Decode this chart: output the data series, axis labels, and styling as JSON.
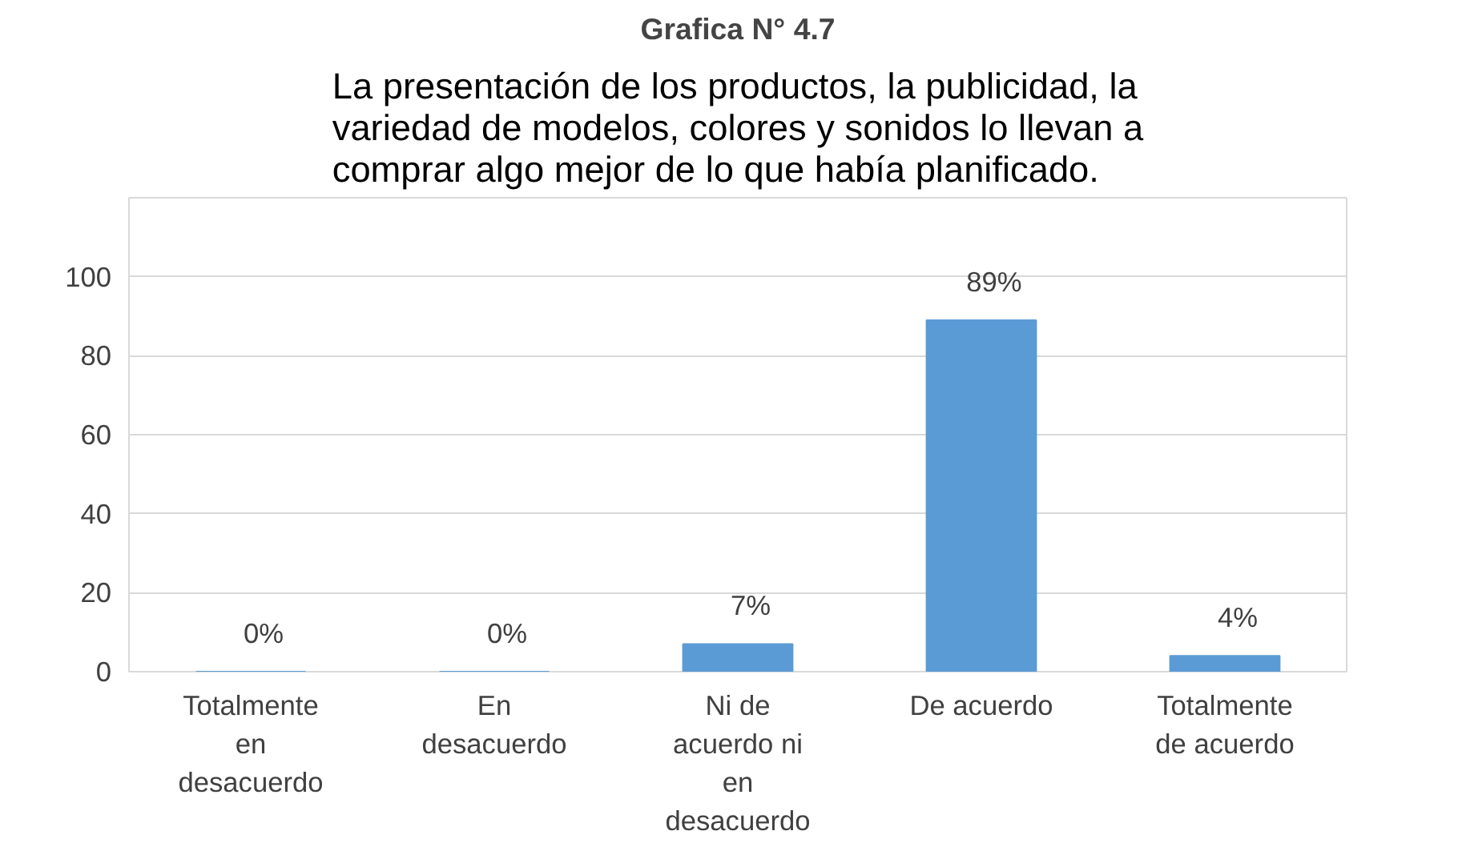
{
  "chart_data": {
    "type": "bar",
    "title": "La presentación de los productos, la publicidad, la variedad de modelos, colores y sonidos lo llevan a comprar algo mejor de lo que había planificado.",
    "annotations": [
      "Grafica N° 4.7"
    ],
    "categories": [
      "Totalmente en desacuerdo",
      "En desacuerdo",
      "Ni de acuerdo ni en desacuerdo",
      "De acuerdo",
      "Totalmente de acuerdo"
    ],
    "values": [
      0,
      0,
      7,
      89,
      4
    ],
    "value_labels": [
      "0%",
      "0%",
      "7%",
      "89%",
      "4%"
    ],
    "color": "#5b9bd5",
    "ylim": [
      0,
      120
    ],
    "yticks": [
      0,
      20,
      40,
      60,
      80,
      100,
      {
        "value": 120,
        "label": null
      }
    ],
    "grid": "y"
  }
}
